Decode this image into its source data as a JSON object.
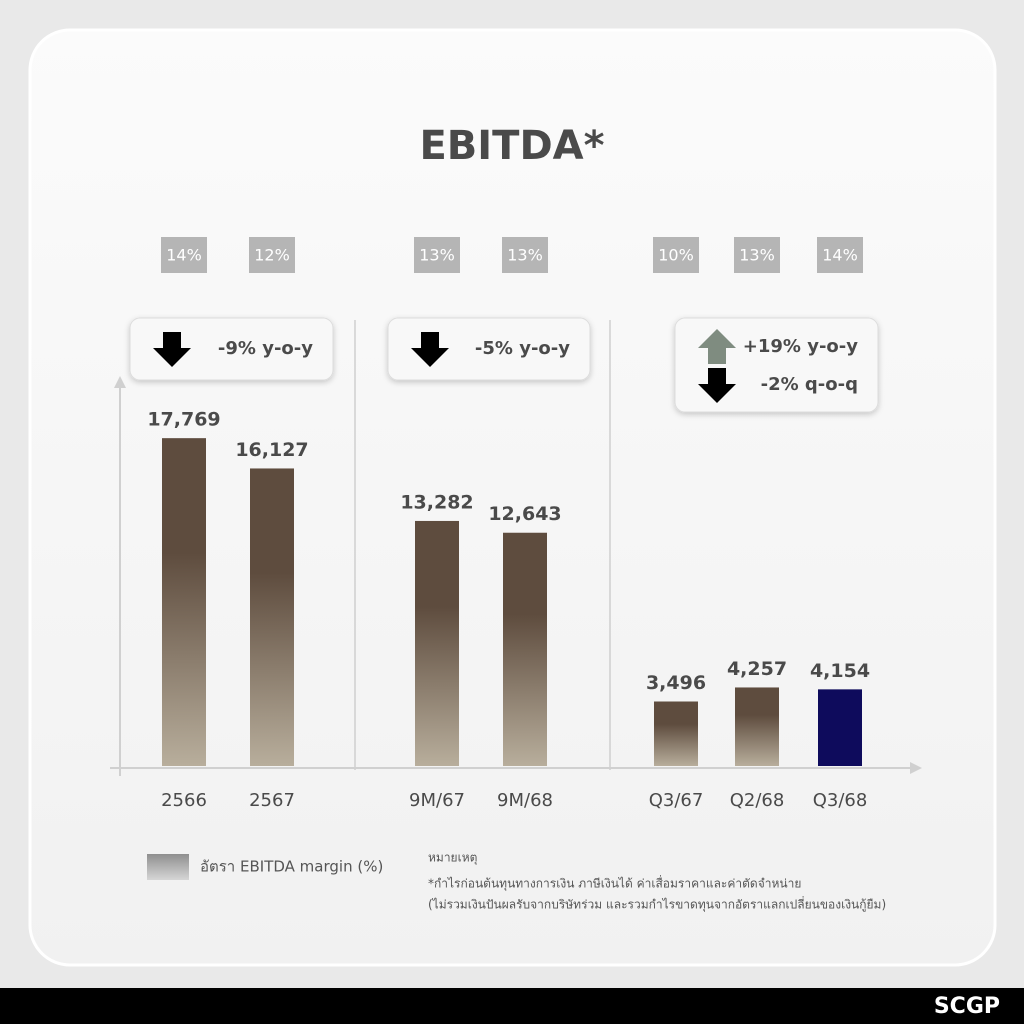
{
  "chart_data": {
    "type": "bar",
    "title": "EBITDA*",
    "categories": [
      "2566",
      "2567",
      "9M/67",
      "9M/68",
      "Q3/67",
      "Q2/68",
      "Q3/68"
    ],
    "values": [
      17769,
      16127,
      13282,
      12643,
      3496,
      4257,
      4154
    ],
    "value_labels": [
      "17,769",
      "16,127",
      "13,282",
      "12,643",
      "3,496",
      "4,257",
      "4,154"
    ],
    "colors": [
      "#5e4c3e",
      "#5e4c3e",
      "#5e4c3e",
      "#5e4c3e",
      "#5e4c3e",
      "#5e4c3e",
      "#0e0b5c"
    ],
    "ylim": [
      0,
      20000
    ],
    "margins": {
      "legend": "อัตรา EBITDA margin (%)",
      "values": [
        14,
        12,
        13,
        13,
        10,
        13,
        14
      ],
      "value_labels": [
        "14%",
        "12%",
        "13%",
        "13%",
        "10%",
        "13%",
        "14%"
      ]
    },
    "callouts": [
      {
        "lines": [
          "-9% y-o-y"
        ],
        "arrows": [
          "down"
        ]
      },
      {
        "lines": [
          "-5% y-o-y"
        ],
        "arrows": [
          "down"
        ]
      },
      {
        "lines": [
          "+19% y-o-y",
          "-2% q-o-q"
        ],
        "arrows": [
          "up",
          "down"
        ]
      }
    ],
    "note": {
      "heading": "หมายเหตุ",
      "lines": [
        "*กำไรก่อนต้นทุนทางการเงิน ภาษีเงินได้ ค่าเสื่อมราคาและค่าตัดจำหน่าย",
        "(ไม่รวมเงินปันผลรับจากบริษัทร่วม และรวมกำไรขาดทุนจากอัตราแลกเปลี่ยนของเงินกู้ยืม)"
      ]
    },
    "brand": "SCGP"
  }
}
